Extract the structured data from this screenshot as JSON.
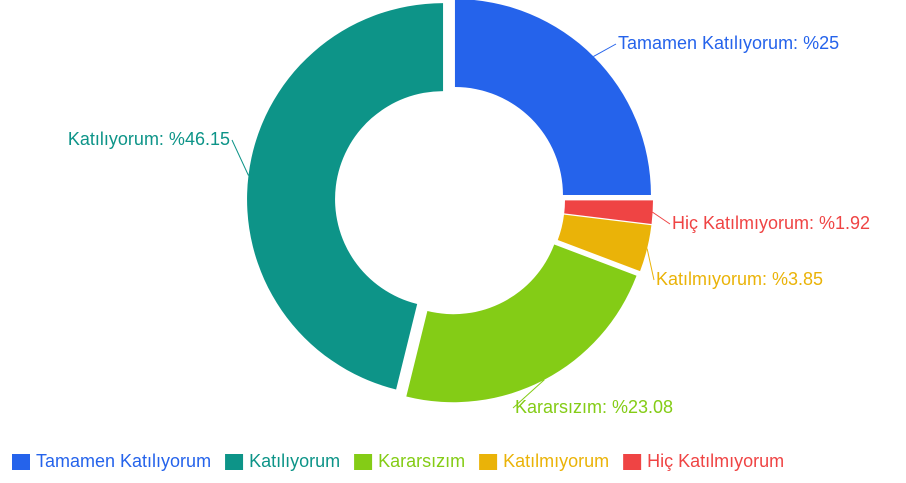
{
  "chart_data": {
    "type": "donut",
    "categories": [
      "Tamamen Katılıyorum",
      "Katılıyorum",
      "Kararsızım",
      "Katılmıyorum",
      "Hiç Katılmıyorum"
    ],
    "values": [
      25,
      46.15,
      23.08,
      3.85,
      1.92
    ],
    "value_labels": [
      "Tamamen Katılıyorum: %25",
      "Katılıyorum: %46.15",
      "Kararsızım: %23.08",
      "Katılmıyorum: %3.85",
      "Hiç Katılmıyorum: %1.92"
    ],
    "colors": [
      "#2563eb",
      "#0d9488",
      "#84cc16",
      "#eab308",
      "#ef4444"
    ],
    "legend": "bottom"
  }
}
